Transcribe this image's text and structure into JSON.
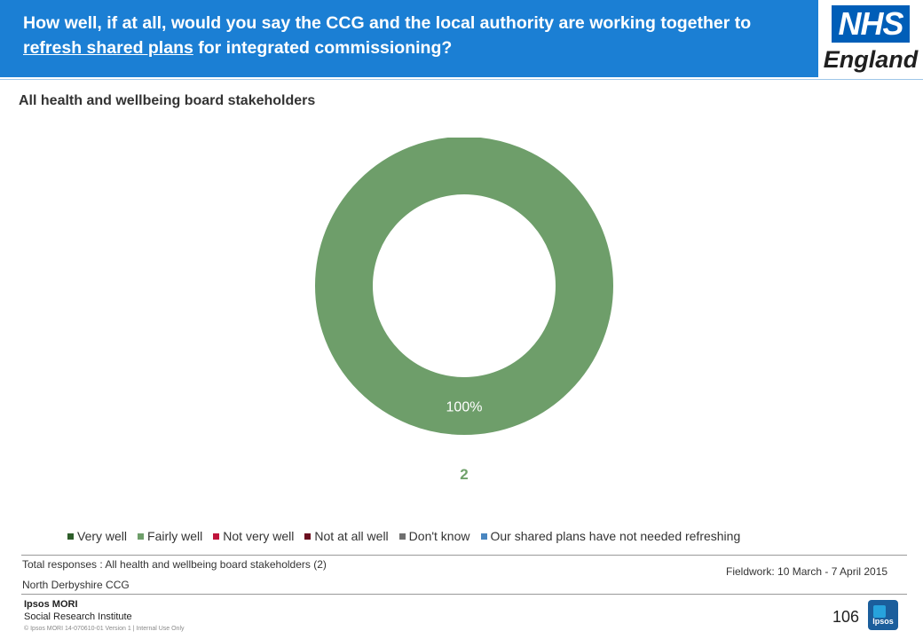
{
  "header": {
    "question_part1": "How well, if at all, would you say the CCG and the local authority are working together to ",
    "question_underlined": "refresh shared plans",
    "question_part2": " for integrated commissioning?"
  },
  "logo": {
    "nhs": "NHS",
    "england": "England"
  },
  "subtitle": "All health and wellbeing board stakeholders",
  "chart_data": {
    "type": "pie",
    "donut": true,
    "categories": [
      "Very well",
      "Fairly well",
      "Not very well",
      "Not at all well",
      "Don't know",
      "Our shared plans have not needed refreshing"
    ],
    "values": [
      0,
      100,
      0,
      0,
      0,
      0
    ],
    "colors": [
      "#2e5e2a",
      "#6e9e6a",
      "#c0143c",
      "#6b0f1f",
      "#6f6f6f",
      "#4a86c0"
    ],
    "data_labels": [
      "",
      "100%",
      "",
      "",
      "",
      ""
    ],
    "base_n": "2",
    "legend_position": "bottom"
  },
  "footer": {
    "total_responses": "Total responses : All health and wellbeing board stakeholders (2)",
    "fieldwork": "Fieldwork: 10 March - 7 April 2015",
    "ccg": "North Derbyshire CCG",
    "ipsos_name": "Ipsos MORI",
    "ipsos_sub": "Social Research Institute",
    "copyright": "© Ipsos MORI    14-070610-01  Version 1 | Internal Use Only",
    "page_number": "106",
    "ipsos_logo_text": "Ipsos"
  }
}
